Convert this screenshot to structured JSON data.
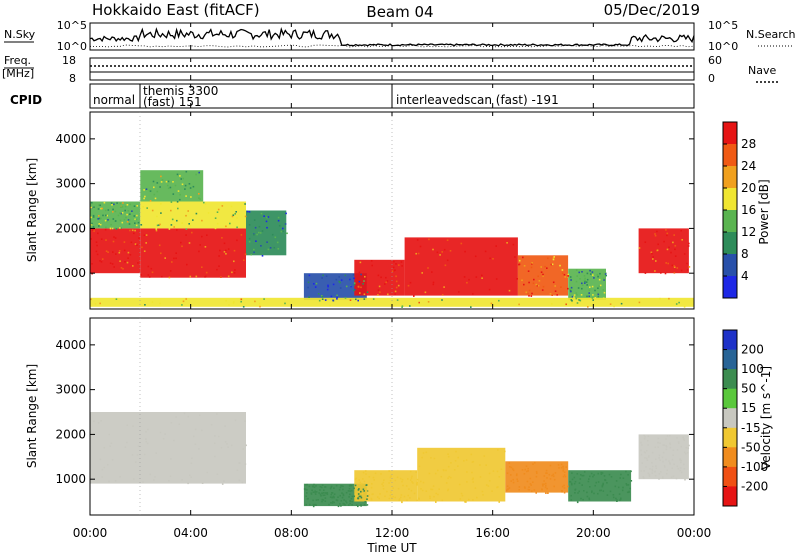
{
  "header": {
    "title": "Hokkaido East (fitACF)",
    "beam": "Beam 04",
    "date": "05/Dec/2019"
  },
  "left_labels": {
    "nsky": "N.Sky",
    "freq": "Freq.",
    "freq_unit": "[MHz]",
    "cpid": "CPID"
  },
  "right_labels": {
    "nsearch": "N.Search",
    "nave": "Nave"
  },
  "noise_panel": {
    "left_ticks": [
      "10^5",
      "10^0"
    ],
    "right_ticks": [
      "10^5",
      "10^0"
    ]
  },
  "freq_panel": {
    "left_ticks": [
      "18",
      "8"
    ],
    "right_ticks": [
      "60",
      "0"
    ]
  },
  "cpid_panel": {
    "segments": [
      {
        "label": "normal",
        "start_h": 0.0,
        "end_h": 2.0
      },
      {
        "label": "themis 3300",
        "label2": "(fast) 151",
        "start_h": 2.0,
        "end_h": 12.0
      },
      {
        "label": "interleavedscan (fast) -191",
        "start_h": 12.0,
        "end_h": 24.0
      }
    ]
  },
  "chart_data": [
    {
      "type": "heatmap",
      "name": "power",
      "ylabel": "Slant Range [km]",
      "xlim": [
        0,
        24
      ],
      "ylim": [
        200,
        4600
      ],
      "yticks": [
        1000,
        2000,
        3000,
        4000
      ],
      "colorbar": {
        "label": "Power [dB]",
        "range": [
          0,
          32
        ],
        "ticks": [
          "28",
          "24",
          "20",
          "16",
          "12",
          "8",
          "4"
        ],
        "colors": [
          "#1e28e6",
          "#2850aa",
          "#2e8c5a",
          "#5ab450",
          "#f0e632",
          "#f0a01e",
          "#f05a14",
          "#e61414"
        ]
      },
      "regions": [
        {
          "t0": 0.0,
          "t1": 2.0,
          "r0": 1000,
          "r1": 2000,
          "level": 28
        },
        {
          "t0": 0.0,
          "t1": 2.0,
          "r0": 2000,
          "r1": 2600,
          "level": 14
        },
        {
          "t0": 2.0,
          "t1": 6.2,
          "r0": 900,
          "r1": 2000,
          "level": 28
        },
        {
          "t0": 2.0,
          "t1": 6.2,
          "r0": 2000,
          "r1": 2600,
          "level": 16
        },
        {
          "t0": 2.0,
          "t1": 4.5,
          "r0": 2600,
          "r1": 3300,
          "level": 14
        },
        {
          "t0": 6.2,
          "t1": 7.8,
          "r0": 1400,
          "r1": 2400,
          "level": 8
        },
        {
          "t0": 8.5,
          "t1": 11.0,
          "r0": 400,
          "r1": 1000,
          "level": 6
        },
        {
          "t0": 10.5,
          "t1": 12.5,
          "r0": 500,
          "r1": 1300,
          "level": 28
        },
        {
          "t0": 12.5,
          "t1": 17.0,
          "r0": 500,
          "r1": 1800,
          "level": 28
        },
        {
          "t0": 17.0,
          "t1": 19.0,
          "r0": 500,
          "r1": 1400,
          "level": 26
        },
        {
          "t0": 19.0,
          "t1": 20.5,
          "r0": 400,
          "r1": 1100,
          "level": 12
        },
        {
          "t0": 21.8,
          "t1": 23.8,
          "r0": 1000,
          "r1": 2000,
          "level": 28
        },
        {
          "t0": 0.0,
          "t1": 24.0,
          "r0": 250,
          "r1": 450,
          "level": 18
        }
      ]
    },
    {
      "type": "heatmap",
      "name": "velocity",
      "ylabel": "Slant Range [km]",
      "xlabel": "Time UT",
      "xlim": [
        0,
        24
      ],
      "ylim": [
        200,
        4600
      ],
      "yticks": [
        1000,
        2000,
        3000,
        4000
      ],
      "xticks": [
        "00:00",
        "04:00",
        "08:00",
        "12:00",
        "16:00",
        "20:00",
        "00:00"
      ],
      "colorbar": {
        "label": "Velocity [m s^-1]",
        "ticks": [
          "200",
          "100",
          "50",
          "15",
          "-15",
          "-50",
          "-100",
          "-200"
        ],
        "colors": [
          "#1e32c8",
          "#286496",
          "#3c8c50",
          "#5ac83c",
          "#c8c8c0",
          "#f0c832",
          "#f08c1e",
          "#f05014",
          "#e61414"
        ]
      },
      "regions": [
        {
          "t0": 0.0,
          "t1": 6.2,
          "r0": 900,
          "r1": 2500,
          "level": 0
        },
        {
          "t0": 8.5,
          "t1": 11.0,
          "r0": 400,
          "r1": 900,
          "level": 60
        },
        {
          "t0": 10.5,
          "t1": 13.0,
          "r0": 500,
          "r1": 1200,
          "level": -30
        },
        {
          "t0": 13.0,
          "t1": 16.5,
          "r0": 500,
          "r1": 1700,
          "level": -40
        },
        {
          "t0": 16.5,
          "t1": 19.0,
          "r0": 700,
          "r1": 1400,
          "level": -70
        },
        {
          "t0": 19.0,
          "t1": 21.5,
          "r0": 500,
          "r1": 1200,
          "level": 70
        },
        {
          "t0": 21.8,
          "t1": 23.8,
          "r0": 1000,
          "r1": 2000,
          "level": 0
        }
      ]
    }
  ]
}
